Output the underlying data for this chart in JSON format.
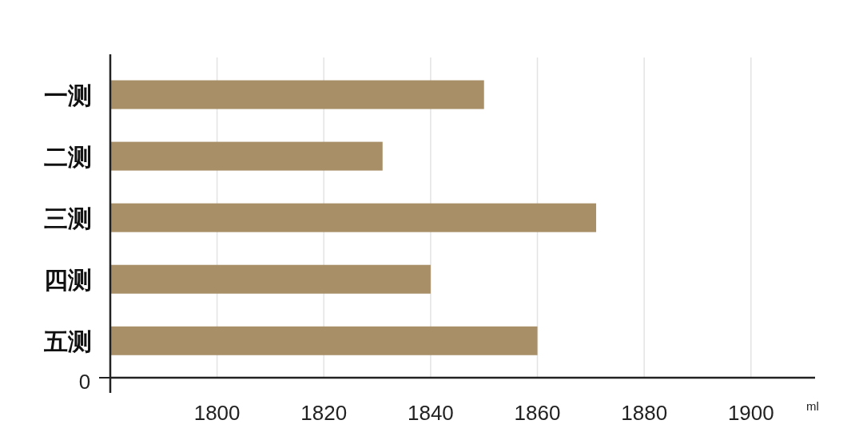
{
  "chart_data": {
    "type": "bar",
    "orientation": "horizontal",
    "categories": [
      "一测",
      "二测",
      "三测",
      "四测",
      "五测"
    ],
    "values": [
      1850,
      1831,
      1871,
      1840,
      1860
    ],
    "color": "#a88f68",
    "xlim": [
      1780,
      1912
    ],
    "xticks": [
      1800,
      1820,
      1840,
      1860,
      1880,
      1900
    ],
    "xlabel": "ml",
    "grid": "x",
    "annotations": [
      "0"
    ]
  }
}
